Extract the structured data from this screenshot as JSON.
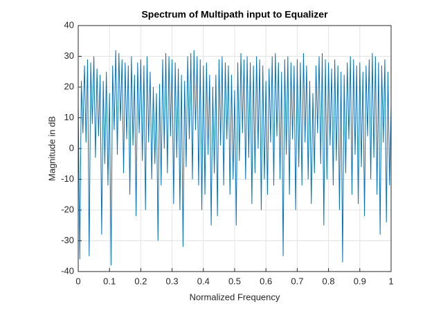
{
  "chart_data": {
    "type": "line",
    "title": "Spectrum of Multipath input to Equalizer",
    "x_label": "Normalized Frequency",
    "y_label": "Magnitude in dB",
    "x": [
      0,
      0.005,
      0.01,
      0.015,
      0.02,
      0.025,
      0.03,
      0.035,
      0.04,
      0.045,
      0.05,
      0.055,
      0.06,
      0.065,
      0.07,
      0.075,
      0.08,
      0.085,
      0.09,
      0.095,
      0.1,
      0.105,
      0.11,
      0.115,
      0.12,
      0.125,
      0.13,
      0.135,
      0.14,
      0.145,
      0.15,
      0.155,
      0.16,
      0.165,
      0.17,
      0.175,
      0.18,
      0.185,
      0.19,
      0.195,
      0.2,
      0.205,
      0.21,
      0.215,
      0.22,
      0.225,
      0.23,
      0.235,
      0.24,
      0.245,
      0.25,
      0.255,
      0.26,
      0.265,
      0.27,
      0.275,
      0.28,
      0.285,
      0.29,
      0.295,
      0.3,
      0.305,
      0.31,
      0.315,
      0.32,
      0.325,
      0.33,
      0.335,
      0.34,
      0.345,
      0.35,
      0.355,
      0.36,
      0.365,
      0.37,
      0.375,
      0.38,
      0.385,
      0.39,
      0.395,
      0.4,
      0.405,
      0.41,
      0.415,
      0.42,
      0.425,
      0.43,
      0.435,
      0.44,
      0.445,
      0.45,
      0.455,
      0.46,
      0.465,
      0.47,
      0.475,
      0.48,
      0.485,
      0.49,
      0.495,
      0.5,
      0.505,
      0.51,
      0.515,
      0.52,
      0.525,
      0.53,
      0.535,
      0.54,
      0.545,
      0.55,
      0.555,
      0.56,
      0.565,
      0.57,
      0.575,
      0.58,
      0.585,
      0.59,
      0.595,
      0.6,
      0.605,
      0.61,
      0.615,
      0.62,
      0.625,
      0.63,
      0.635,
      0.64,
      0.645,
      0.65,
      0.655,
      0.66,
      0.665,
      0.67,
      0.675,
      0.68,
      0.685,
      0.69,
      0.695,
      0.7,
      0.705,
      0.71,
      0.715,
      0.72,
      0.725,
      0.73,
      0.735,
      0.74,
      0.745,
      0.75,
      0.755,
      0.76,
      0.765,
      0.77,
      0.775,
      0.78,
      0.785,
      0.79,
      0.795,
      0.8,
      0.805,
      0.81,
      0.815,
      0.82,
      0.825,
      0.83,
      0.835,
      0.84,
      0.845,
      0.85,
      0.855,
      0.86,
      0.865,
      0.87,
      0.875,
      0.88,
      0.885,
      0.89,
      0.895,
      0.9,
      0.905,
      0.91,
      0.915,
      0.92,
      0.925,
      0.93,
      0.935,
      0.94,
      0.945,
      0.95,
      0.955,
      0.96,
      0.965,
      0.97,
      0.975,
      0.98,
      0.985,
      0.99,
      0.995,
      1
    ],
    "series": [
      {
        "color": "#0072bd",
        "values": [
          15,
          -36,
          22,
          5,
          27,
          2,
          29,
          -35,
          28,
          8,
          30,
          -3,
          26,
          4,
          24,
          -28,
          22,
          -5,
          25,
          -12,
          18,
          -38,
          27,
          6,
          32,
          -2,
          31,
          9,
          29,
          -8,
          28,
          3,
          27,
          -15,
          30,
          1,
          24,
          -22,
          28,
          5,
          29,
          -4,
          27,
          -20,
          30,
          2,
          25,
          -10,
          20,
          -5,
          18,
          -30,
          21,
          -12,
          29,
          0,
          31,
          -8,
          30,
          4,
          29,
          -18,
          28,
          -3,
          26,
          -20,
          24,
          -32,
          22,
          -6,
          30,
          3,
          31,
          -10,
          32,
          6,
          30,
          -12,
          29,
          -20,
          27,
          -15,
          28,
          -2,
          24,
          -25,
          20,
          -8,
          24,
          -22,
          29,
          1,
          30,
          -12,
          28,
          3,
          27,
          -15,
          24,
          -10,
          19,
          -25,
          28,
          -4,
          31,
          5,
          29,
          -10,
          30,
          -3,
          28,
          -18,
          27,
          -8,
          30,
          0,
          29,
          -20,
          27,
          -10,
          22,
          -15,
          26,
          2,
          30,
          -12,
          31,
          4,
          28,
          -10,
          25,
          -35,
          29,
          -2,
          30,
          -15,
          28,
          3,
          27,
          -20,
          29,
          -6,
          28,
          -12,
          31,
          2,
          27,
          -10,
          22,
          -18,
          18,
          -8,
          27,
          5,
          30,
          -5,
          31,
          -25,
          29,
          -10,
          28,
          1,
          26,
          -12,
          29,
          -4,
          27,
          -20,
          25,
          -37,
          24,
          -8,
          28,
          3,
          30,
          -15,
          29,
          -2,
          27,
          -18,
          28,
          -6,
          25,
          -22,
          27,
          4,
          29,
          -10,
          31,
          -3,
          30,
          -15,
          28,
          -28,
          27,
          2,
          29,
          -24,
          25,
          -12,
          14
        ]
      }
    ],
    "xlim": [
      0,
      1
    ],
    "xticks": [
      0,
      0.1,
      0.2,
      0.3,
      0.4,
      0.5,
      0.6,
      0.7,
      0.8,
      0.9,
      1
    ],
    "ylim": [
      -40,
      40
    ],
    "yticks": [
      -40,
      -30,
      -20,
      -10,
      0,
      10,
      20,
      30,
      40
    ],
    "grid": true
  }
}
